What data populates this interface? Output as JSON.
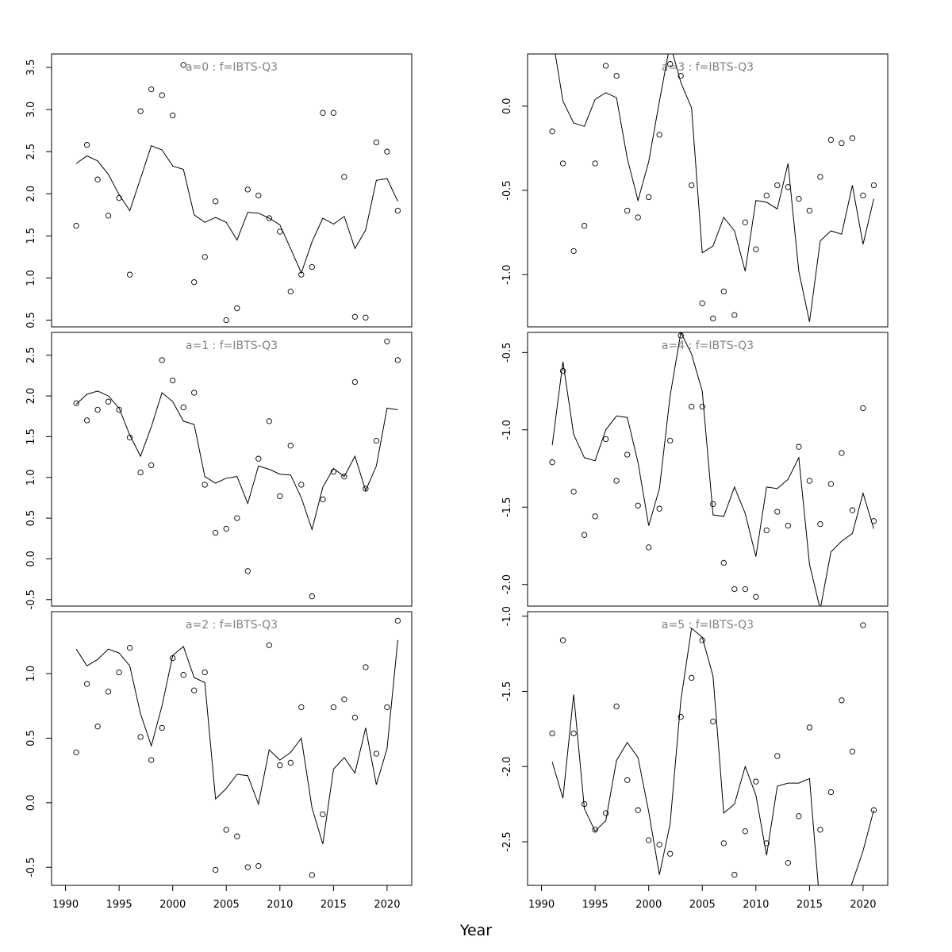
{
  "xlabel": "Year",
  "x_ticks": [
    1990,
    1995,
    2000,
    2005,
    2010,
    2015,
    2020
  ],
  "colors": {
    "line": "#000000",
    "points": "#000000",
    "title": "#808080",
    "frame": "#000000"
  },
  "chart_data": [
    {
      "type": "line",
      "title": "a=0  :  f=IBTS-Q3",
      "xlim": [
        1988.7,
        2022.3
      ],
      "ylim": [
        0.42,
        3.66
      ],
      "y_ticks": [
        "0.5",
        "1.0",
        "1.5",
        "2.0",
        "2.5",
        "3.0",
        "3.5"
      ],
      "series": [
        {
          "kind": "line",
          "x": [
            1991,
            1992,
            1993,
            1994,
            1995,
            1996,
            1997,
            1998,
            1999,
            2000,
            2001,
            2002,
            2003,
            2004,
            2005,
            2006,
            2007,
            2008,
            2009,
            2010,
            2011,
            2012,
            2013,
            2014,
            2015,
            2016,
            2017,
            2018,
            2019,
            2020,
            2021
          ],
          "values": [
            2.36,
            2.45,
            2.39,
            2.23,
            1.99,
            1.8,
            2.18,
            2.57,
            2.52,
            2.33,
            2.29,
            1.75,
            1.66,
            1.72,
            1.66,
            1.45,
            1.78,
            1.77,
            1.71,
            1.63,
            1.35,
            1.06,
            1.43,
            1.71,
            1.64,
            1.73,
            1.35,
            1.57,
            2.16,
            2.18,
            1.91
          ]
        },
        {
          "kind": "points",
          "x": [
            1991,
            1992,
            1993,
            1994,
            1995,
            1996,
            1997,
            1998,
            1999,
            2000,
            2001,
            2002,
            2003,
            2004,
            2005,
            2006,
            2007,
            2008,
            2009,
            2010,
            2011,
            2012,
            2013,
            2014,
            2015,
            2016,
            2017,
            2018,
            2019,
            2020,
            2021
          ],
          "values": [
            1.62,
            2.58,
            2.17,
            1.74,
            1.95,
            1.04,
            2.98,
            3.24,
            3.17,
            2.93,
            3.53,
            0.95,
            1.25,
            1.91,
            0.5,
            0.64,
            2.05,
            1.98,
            1.71,
            1.55,
            0.84,
            1.04,
            1.13,
            2.96,
            2.96,
            2.2,
            0.54,
            0.53,
            2.61,
            2.5,
            1.8
          ]
        }
      ]
    },
    {
      "type": "line",
      "title": "a=1  :  f=IBTS-Q3",
      "xlim": [
        1988.7,
        2022.3
      ],
      "ylim": [
        -0.58,
        2.78
      ],
      "y_ticks": [
        "-0.5",
        "0.0",
        "0.5",
        "1.0",
        "1.5",
        "2.0",
        "2.5"
      ],
      "series": [
        {
          "kind": "line",
          "x": [
            1991,
            1992,
            1993,
            1994,
            1995,
            1996,
            1997,
            1998,
            1999,
            2000,
            2001,
            2002,
            2003,
            2004,
            2005,
            2006,
            2007,
            2008,
            2009,
            2010,
            2011,
            2012,
            2013,
            2014,
            2015,
            2016,
            2017,
            2018,
            2019,
            2020,
            2021
          ],
          "values": [
            1.9,
            2.02,
            2.06,
            2.0,
            1.85,
            1.52,
            1.26,
            1.62,
            2.04,
            1.93,
            1.69,
            1.65,
            1.01,
            0.93,
            0.99,
            1.01,
            0.68,
            1.14,
            1.1,
            1.04,
            1.03,
            0.75,
            0.36,
            0.88,
            1.11,
            1.01,
            1.26,
            0.84,
            1.14,
            1.85,
            1.83
          ]
        },
        {
          "kind": "points",
          "x": [
            1991,
            1992,
            1993,
            1994,
            1995,
            1996,
            1997,
            1998,
            1999,
            2000,
            2001,
            2002,
            2003,
            2004,
            2005,
            2006,
            2007,
            2008,
            2009,
            2010,
            2011,
            2012,
            2013,
            2014,
            2015,
            2016,
            2017,
            2018,
            2019,
            2020,
            2021
          ],
          "values": [
            1.91,
            1.7,
            1.83,
            1.93,
            1.83,
            1.49,
            1.06,
            1.15,
            2.44,
            2.19,
            1.86,
            2.04,
            0.91,
            0.32,
            0.37,
            0.5,
            -0.15,
            1.23,
            1.69,
            0.77,
            1.39,
            0.91,
            -0.46,
            0.73,
            1.07,
            1.01,
            2.17,
            0.86,
            1.45,
            2.67,
            2.44
          ]
        }
      ]
    },
    {
      "type": "line",
      "title": "a=2  :  f=IBTS-Q3",
      "xlim": [
        1988.7,
        2022.3
      ],
      "ylim": [
        -0.64,
        1.48
      ],
      "y_ticks": [
        "-0.5",
        "0.0",
        "0.5",
        "1.0"
      ],
      "series": [
        {
          "kind": "line",
          "x": [
            1991,
            1992,
            1993,
            1994,
            1995,
            1996,
            1997,
            1998,
            1999,
            2000,
            2001,
            2002,
            2003,
            2004,
            2005,
            2006,
            2007,
            2008,
            2009,
            2010,
            2011,
            2012,
            2013,
            2014,
            2015,
            2016,
            2017,
            2018,
            2019,
            2020,
            2021
          ],
          "values": [
            1.19,
            1.06,
            1.11,
            1.19,
            1.16,
            1.06,
            0.69,
            0.44,
            0.75,
            1.14,
            1.21,
            0.97,
            0.93,
            0.03,
            0.11,
            0.22,
            0.21,
            -0.01,
            0.41,
            0.33,
            0.39,
            0.5,
            -0.04,
            -0.32,
            0.26,
            0.35,
            0.23,
            0.58,
            0.14,
            0.42,
            1.26
          ]
        },
        {
          "kind": "points",
          "x": [
            1991,
            1992,
            1993,
            1994,
            1995,
            1996,
            1997,
            1998,
            1999,
            2000,
            2001,
            2002,
            2003,
            2004,
            2005,
            2006,
            2007,
            2008,
            2009,
            2010,
            2011,
            2012,
            2013,
            2014,
            2015,
            2016,
            2017,
            2018,
            2019,
            2020,
            2021
          ],
          "values": [
            0.39,
            0.92,
            0.59,
            0.86,
            1.01,
            1.2,
            0.51,
            0.33,
            0.58,
            1.12,
            0.99,
            0.87,
            1.01,
            -0.52,
            -0.21,
            -0.26,
            -0.5,
            -0.49,
            1.22,
            0.29,
            0.31,
            0.74,
            -0.56,
            -0.09,
            0.74,
            0.8,
            0.66,
            1.05,
            0.38,
            0.74,
            1.41
          ]
        }
      ]
    },
    {
      "type": "line",
      "title": "a=3  :  f=IBTS-Q3",
      "xlim": [
        1988.7,
        2022.3
      ],
      "ylim": [
        -1.31,
        0.31
      ],
      "y_ticks": [
        "-1.0",
        "-0.5",
        "0.0"
      ],
      "series": [
        {
          "kind": "line",
          "x": [
            1991,
            1992,
            1993,
            1994,
            1995,
            1996,
            1997,
            1998,
            1999,
            2000,
            2001,
            2002,
            2003,
            2004,
            2005,
            2006,
            2007,
            2008,
            2009,
            2010,
            2011,
            2012,
            2013,
            2014,
            2015,
            2016,
            2017,
            2018,
            2019,
            2020,
            2021
          ],
          "values": [
            0.42,
            0.03,
            -0.1,
            -0.12,
            0.04,
            0.08,
            0.05,
            -0.31,
            -0.56,
            -0.33,
            0.03,
            0.37,
            0.14,
            -0.01,
            -0.87,
            -0.83,
            -0.66,
            -0.74,
            -0.98,
            -0.56,
            -0.57,
            -0.61,
            -0.34,
            -0.98,
            -1.28,
            -0.8,
            -0.74,
            -0.76,
            -0.47,
            -0.82,
            -0.55
          ]
        },
        {
          "kind": "points",
          "x": [
            1991,
            1992,
            1993,
            1994,
            1995,
            1996,
            1997,
            1998,
            1999,
            2000,
            2001,
            2002,
            2003,
            2004,
            2005,
            2006,
            2007,
            2008,
            2009,
            2010,
            2011,
            2012,
            2013,
            2014,
            2015,
            2016,
            2017,
            2018,
            2019,
            2020,
            2021
          ],
          "values": [
            -0.15,
            -0.34,
            -0.86,
            -0.71,
            -0.34,
            0.24,
            0.18,
            -0.62,
            -0.66,
            -0.54,
            -0.17,
            0.25,
            0.18,
            -0.47,
            -1.17,
            -1.26,
            -1.1,
            -1.24,
            -0.69,
            -0.85,
            -0.53,
            -0.47,
            -0.48,
            -0.55,
            -0.62,
            -0.42,
            -0.2,
            -0.22,
            -0.19,
            -0.53,
            -0.47
          ]
        }
      ]
    },
    {
      "type": "line",
      "title": "a=4  :  f=IBTS-Q3",
      "xlim": [
        1988.7,
        2022.3
      ],
      "ylim": [
        -2.14,
        -0.37
      ],
      "y_ticks": [
        "-2.0",
        "-1.5",
        "-1.0",
        "-0.5"
      ],
      "series": [
        {
          "kind": "line",
          "x": [
            1991,
            1992,
            1993,
            1994,
            1995,
            1996,
            1997,
            1998,
            1999,
            2000,
            2001,
            2002,
            2003,
            2004,
            2005,
            2006,
            2007,
            2008,
            2009,
            2010,
            2011,
            2012,
            2013,
            2014,
            2015,
            2016,
            2017,
            2018,
            2019,
            2020,
            2021
          ],
          "values": [
            -1.1,
            -0.56,
            -1.03,
            -1.18,
            -1.2,
            -1.0,
            -0.91,
            -0.92,
            -1.21,
            -1.62,
            -1.38,
            -0.78,
            -0.37,
            -0.51,
            -0.75,
            -1.55,
            -1.56,
            -1.37,
            -1.54,
            -1.82,
            -1.37,
            -1.38,
            -1.32,
            -1.18,
            -1.87,
            -2.16,
            -1.79,
            -1.72,
            -1.67,
            -1.41,
            -1.64
          ]
        },
        {
          "kind": "points",
          "x": [
            1991,
            1992,
            1993,
            1994,
            1995,
            1996,
            1997,
            1998,
            1999,
            2000,
            2001,
            2002,
            2003,
            2004,
            2005,
            2006,
            2007,
            2008,
            2009,
            2010,
            2011,
            2012,
            2013,
            2014,
            2015,
            2016,
            2017,
            2018,
            2019,
            2020,
            2021
          ],
          "values": [
            -1.21,
            -0.62,
            -1.4,
            -1.68,
            -1.56,
            -1.06,
            -1.33,
            -1.16,
            -1.49,
            -1.76,
            -1.51,
            -1.07,
            -0.39,
            -0.85,
            -0.85,
            -1.48,
            -1.86,
            -2.03,
            -2.03,
            -2.08,
            -1.65,
            -1.53,
            -1.62,
            -1.11,
            -1.33,
            -1.61,
            -1.35,
            -1.15,
            -1.52,
            -0.86,
            -1.59
          ]
        }
      ]
    },
    {
      "type": "line",
      "title": "a=5  :  f=IBTS-Q3",
      "xlim": [
        1988.7,
        2022.3
      ],
      "ylim": [
        -2.79,
        -0.97
      ],
      "y_ticks": [
        "-2.5",
        "-2.0",
        "-1.5",
        "-1.0"
      ],
      "series": [
        {
          "kind": "line",
          "x": [
            1991,
            1992,
            1993,
            1994,
            1995,
            1996,
            1997,
            1998,
            1999,
            2000,
            2001,
            2002,
            2003,
            2004,
            2005,
            2006,
            2007,
            2008,
            2009,
            2010,
            2011,
            2012,
            2013,
            2014,
            2015,
            2016,
            2017,
            2018,
            2019,
            2020,
            2021
          ],
          "values": [
            -1.97,
            -2.21,
            -1.52,
            -2.28,
            -2.43,
            -2.36,
            -1.96,
            -1.84,
            -1.94,
            -2.3,
            -2.72,
            -2.38,
            -1.56,
            -1.08,
            -1.14,
            -1.4,
            -2.31,
            -2.25,
            -2.0,
            -2.19,
            -2.59,
            -2.13,
            -2.11,
            -2.11,
            -2.08,
            -2.95,
            -2.95,
            -2.95,
            -2.77,
            -2.56,
            -2.29
          ]
        },
        {
          "kind": "points",
          "x": [
            1991,
            1992,
            1993,
            1994,
            1995,
            1996,
            1997,
            1998,
            1999,
            2000,
            2001,
            2002,
            2003,
            2004,
            2005,
            2006,
            2007,
            2008,
            2009,
            2010,
            2011,
            2012,
            2013,
            2014,
            2015,
            2016,
            2017,
            2018,
            2019,
            2020,
            2021
          ],
          "values": [
            -1.78,
            -1.16,
            -1.78,
            -2.25,
            -2.42,
            -2.31,
            -1.6,
            -2.09,
            -2.29,
            -2.49,
            -2.52,
            -2.58,
            -1.67,
            -1.41,
            -1.16,
            -1.7,
            -2.51,
            -2.72,
            -2.43,
            -2.1,
            -2.51,
            -1.93,
            -2.64,
            -2.33,
            -1.74,
            -2.42,
            -2.17,
            -1.56,
            -1.9,
            -1.06,
            -2.29
          ]
        }
      ]
    }
  ]
}
